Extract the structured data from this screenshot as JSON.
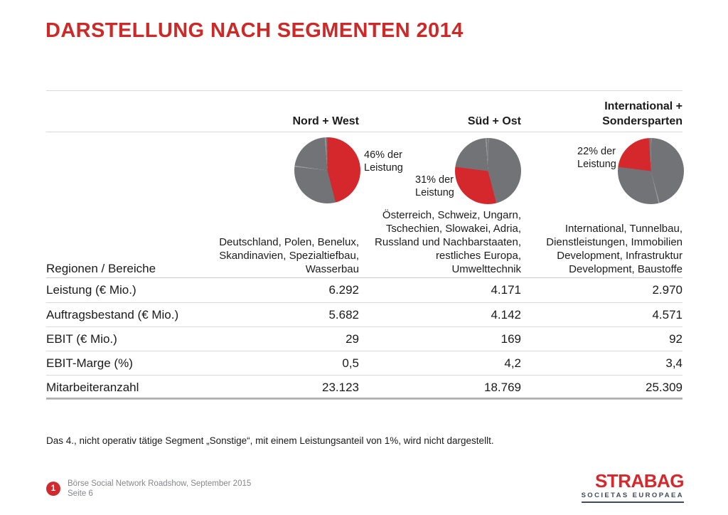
{
  "slide_title": "DARSTELLUNG NACH SEGMENTEN 2014",
  "colors": {
    "accent_red": "#cb2a28",
    "pie_red": "#d5282d",
    "pie_gray": "#727376",
    "logo_navy": "#3e4b58"
  },
  "pie_boundaries": [
    0,
    46,
    77,
    99
  ],
  "segments": [
    {
      "name": "Nord + West",
      "share_label": "46% der\nLeistung",
      "regions": "Deutschland, Polen, Benelux,\nSkandinavien, Spezialtiefbau,\nWasserbau",
      "pie": {
        "start": 0,
        "end": 46
      }
    },
    {
      "name": "Süd + Ost",
      "share_label": "31% der\nLeistung",
      "regions": "Österreich, Schweiz, Ungarn,\nTschechien, Slowakei, Adria,\nRussland und Nachbarstaaten,\nrestliches Europa,\nUmwelttechnik",
      "pie": {
        "start": 46,
        "end": 77
      }
    },
    {
      "name": "International +\nSondersparten",
      "share_label": "22% der\nLeistung",
      "regions": "International, Tunnelbau,\nDienstleistungen, Immobilien\nDevelopment, Infrastruktur\nDevelopment, Baustoffe",
      "pie": {
        "start": 77,
        "end": 99
      }
    }
  ],
  "table": {
    "corner_label": "Regionen / Bereiche",
    "rows": [
      {
        "label": "Leistung (€ Mio.)",
        "values": [
          "6.292",
          "4.171",
          "2.970"
        ]
      },
      {
        "label": "Auftragsbestand (€ Mio.)",
        "values": [
          "5.682",
          "4.142",
          "4.571"
        ]
      },
      {
        "label": "EBIT (€ Mio.)",
        "values": [
          "29",
          "169",
          "92"
        ]
      },
      {
        "label": "EBIT-Marge (%)",
        "values": [
          "0,5",
          "4,2",
          "3,4"
        ]
      },
      {
        "label": "Mitarbeiteranzahl",
        "values": [
          "23.123",
          "18.769",
          "25.309"
        ]
      }
    ]
  },
  "footnote": "Das 4., nicht operativ tätige Segment „Sonstige“, mit einem Leistungsanteil von 1%, wird nicht dargestellt.",
  "footer": {
    "page_badge": "1",
    "line1": "Börse Social Network Roadshow, September 2015",
    "line2": "Seite 6"
  },
  "logo": {
    "brand": "STRABAG",
    "subtitle": "SOCIETAS EUROPAEA"
  },
  "chart_data": [
    {
      "type": "pie",
      "title": "Leistungsanteile nach Segmenten 2014",
      "labels": [
        "Nord + West",
        "Süd + Ost",
        "International + Sondersparten",
        "Sonstige"
      ],
      "values": [
        46,
        31,
        22,
        1
      ],
      "unit": "% der Leistung",
      "note": "Drei identische Kreisdiagramme; in jedem ist nur der Anteil des jeweiligen Segments rot hervorgehoben, Rest grau.",
      "highlight_color": "#d5282d",
      "base_color": "#727376",
      "legend_position": "none"
    },
    {
      "type": "table",
      "columns": [
        "Regionen / Bereiche",
        "Nord + West",
        "Süd + Ost",
        "International + Sondersparten"
      ],
      "rows": [
        [
          "Leistung (€ Mio.)",
          "6.292",
          "4.171",
          "2.970"
        ],
        [
          "Auftragsbestand (€ Mio.)",
          "5.682",
          "4.142",
          "4.571"
        ],
        [
          "EBIT (€ Mio.)",
          "29",
          "169",
          "92"
        ],
        [
          "EBIT-Marge (%)",
          "0,5",
          "4,2",
          "3,4"
        ],
        [
          "Mitarbeiteranzahl",
          "23.123",
          "18.769",
          "25.309"
        ]
      ]
    }
  ]
}
